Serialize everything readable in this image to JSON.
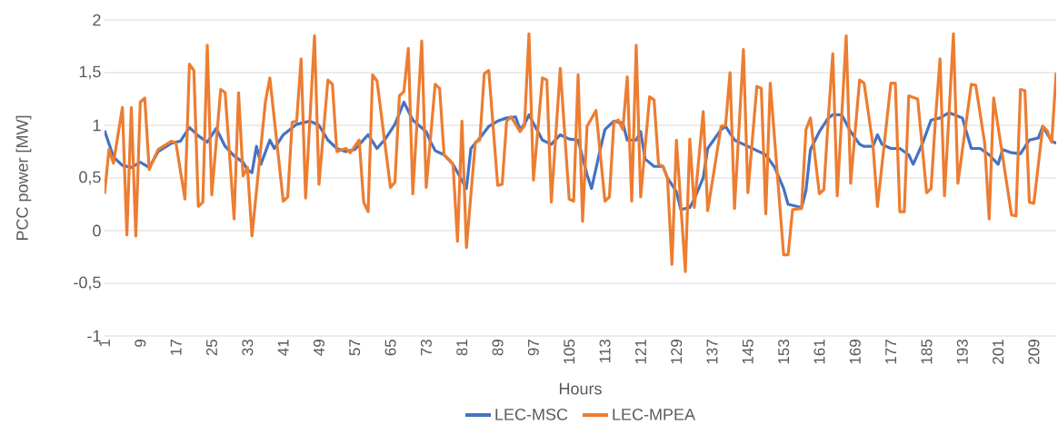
{
  "chart_data": {
    "type": "line",
    "xlabel": "Hours",
    "ylabel": "PCC power [MW]",
    "xlim": [
      1,
      214
    ],
    "xticks": [
      1,
      9,
      17,
      25,
      33,
      41,
      49,
      57,
      65,
      73,
      81,
      89,
      97,
      105,
      113,
      121,
      129,
      137,
      145,
      153,
      161,
      169,
      177,
      185,
      193,
      201,
      209
    ],
    "ylim": [
      -1,
      2
    ],
    "yticks": [
      -1,
      {
        "value": -0.5,
        "label": "-0,5"
      },
      0,
      {
        "value": 0.5,
        "label": "0,5"
      },
      1,
      {
        "value": 1.5,
        "label": "1,5"
      },
      2
    ],
    "grid": "y",
    "legend": "bottom",
    "marker": "none",
    "line_style": "solid",
    "series": [
      {
        "name": "LEC-MSC",
        "color": "#4472c4",
        "x": [
          1,
          3,
          5,
          7,
          9,
          11,
          13,
          16,
          18,
          20,
          22,
          24,
          26,
          28,
          30,
          32,
          33,
          34,
          35,
          36,
          38,
          39,
          41,
          44,
          47,
          49,
          51,
          53,
          55,
          57,
          60,
          62,
          64,
          66,
          68,
          70,
          73,
          74,
          75,
          77,
          79,
          82,
          83,
          85,
          87,
          89,
          91,
          93,
          94,
          95,
          96,
          99,
          101,
          103,
          105,
          107,
          109,
          110,
          112,
          113,
          115,
          117,
          118,
          120,
          121,
          122,
          124,
          126,
          127,
          129,
          130,
          132,
          133,
          135,
          136,
          139,
          140,
          142,
          144,
          146,
          148,
          149,
          151,
          153,
          154,
          157,
          158,
          159,
          161,
          163,
          164,
          166,
          168,
          170,
          171,
          173,
          174,
          175,
          177,
          179,
          181,
          182,
          184,
          186,
          188,
          190,
          193,
          195,
          197,
          199,
          201,
          202,
          204,
          206,
          208,
          210,
          211,
          213,
          214
        ],
        "values": [
          0.95,
          0.7,
          0.62,
          0.6,
          0.65,
          0.6,
          0.75,
          0.83,
          0.85,
          0.98,
          0.9,
          0.84,
          0.97,
          0.8,
          0.71,
          0.65,
          0.58,
          0.55,
          0.8,
          0.63,
          0.86,
          0.78,
          0.91,
          1.01,
          1.04,
          1.0,
          0.86,
          0.78,
          0.75,
          0.77,
          0.91,
          0.78,
          0.88,
          1.01,
          1.22,
          1.05,
          0.94,
          0.84,
          0.76,
          0.72,
          0.63,
          0.4,
          0.78,
          0.88,
          0.99,
          1.04,
          1.07,
          1.08,
          0.96,
          1.01,
          1.1,
          0.86,
          0.82,
          0.91,
          0.87,
          0.86,
          0.53,
          0.4,
          0.78,
          0.96,
          1.04,
          1.02,
          0.86,
          0.86,
          0.94,
          0.68,
          0.61,
          0.61,
          0.5,
          0.37,
          0.2,
          0.22,
          0.3,
          0.5,
          0.78,
          0.96,
          0.99,
          0.86,
          0.82,
          0.78,
          0.74,
          0.72,
          0.6,
          0.4,
          0.25,
          0.22,
          0.38,
          0.77,
          0.94,
          1.07,
          1.1,
          1.1,
          0.94,
          0.82,
          0.8,
          0.8,
          0.91,
          0.82,
          0.78,
          0.78,
          0.72,
          0.63,
          0.82,
          1.05,
          1.07,
          1.12,
          1.07,
          0.78,
          0.78,
          0.72,
          0.63,
          0.77,
          0.74,
          0.73,
          0.86,
          0.88,
          0.99,
          0.85,
          0.83
        ]
      },
      {
        "name": "LEC-MPEA",
        "color": "#ed7d31",
        "x": [
          1,
          2,
          3,
          5,
          6,
          7,
          8,
          9,
          10,
          11,
          13,
          16,
          17,
          19,
          20,
          21,
          22,
          23,
          24,
          25,
          27,
          28,
          30,
          31,
          32,
          33,
          34,
          37,
          38,
          41,
          42,
          43,
          44,
          45,
          46,
          48,
          49,
          51,
          52,
          53,
          55,
          56,
          58,
          59,
          60,
          61,
          62,
          65,
          66,
          67,
          68,
          69,
          70,
          72,
          73,
          75,
          76,
          77,
          78,
          79,
          80,
          81,
          82,
          84,
          85,
          86,
          87,
          89,
          90,
          91,
          92,
          94,
          95,
          96,
          97,
          99,
          100,
          101,
          103,
          105,
          106,
          107,
          108,
          109,
          111,
          113,
          114,
          115,
          116,
          117,
          118,
          119,
          120,
          121,
          123,
          124,
          125,
          126,
          127,
          128,
          129,
          131,
          132,
          133,
          135,
          136,
          139,
          140,
          141,
          142,
          144,
          145,
          147,
          148,
          149,
          150,
          153,
          154,
          155,
          157,
          158,
          159,
          161,
          162,
          163,
          164,
          165,
          167,
          168,
          170,
          171,
          173,
          174,
          177,
          178,
          179,
          180,
          181,
          183,
          185,
          186,
          187,
          188,
          189,
          191,
          192,
          195,
          196,
          198,
          199,
          200,
          202,
          204,
          205,
          206,
          207,
          208,
          209,
          211,
          212,
          213,
          214
        ],
        "values": [
          0.35,
          0.77,
          0.64,
          1.17,
          -0.04,
          1.17,
          -0.05,
          1.22,
          1.26,
          0.58,
          0.77,
          0.85,
          0.83,
          0.3,
          1.58,
          1.52,
          0.23,
          0.27,
          1.76,
          0.34,
          1.34,
          1.31,
          0.11,
          1.31,
          0.52,
          0.6,
          -0.05,
          1.22,
          1.45,
          0.28,
          0.32,
          1.03,
          1.04,
          1.63,
          0.31,
          1.85,
          0.44,
          1.43,
          1.39,
          0.75,
          0.78,
          0.74,
          0.86,
          0.27,
          0.18,
          1.48,
          1.42,
          0.41,
          0.46,
          1.28,
          1.32,
          1.73,
          0.35,
          1.8,
          0.41,
          1.39,
          1.35,
          0.72,
          0.68,
          0.63,
          -0.1,
          1.04,
          -0.16,
          0.84,
          0.86,
          1.49,
          1.52,
          0.43,
          0.44,
          1.04,
          1.08,
          0.94,
          1.0,
          1.87,
          0.48,
          1.45,
          1.43,
          0.27,
          1.54,
          0.3,
          0.28,
          1.48,
          0.09,
          0.99,
          1.14,
          0.28,
          0.32,
          1.03,
          1.05,
          0.96,
          1.46,
          0.28,
          1.76,
          0.32,
          1.27,
          1.24,
          0.63,
          0.61,
          0.5,
          -0.32,
          0.86,
          -0.39,
          0.87,
          0.22,
          1.13,
          0.19,
          0.99,
          1.0,
          1.5,
          0.21,
          1.72,
          0.36,
          1.37,
          1.35,
          0.16,
          1.4,
          -0.23,
          -0.23,
          0.2,
          0.21,
          0.96,
          1.07,
          0.35,
          0.39,
          1.07,
          1.68,
          0.33,
          1.85,
          0.45,
          1.43,
          1.4,
          0.81,
          0.23,
          1.4,
          1.4,
          0.18,
          0.18,
          1.28,
          1.25,
          0.36,
          0.4,
          1.07,
          1.63,
          0.33,
          1.87,
          0.45,
          1.39,
          1.38,
          0.83,
          0.11,
          1.26,
          0.71,
          0.15,
          0.14,
          1.34,
          1.33,
          0.27,
          0.26,
          0.99,
          0.95,
          0.84,
          1.5
        ]
      }
    ]
  }
}
